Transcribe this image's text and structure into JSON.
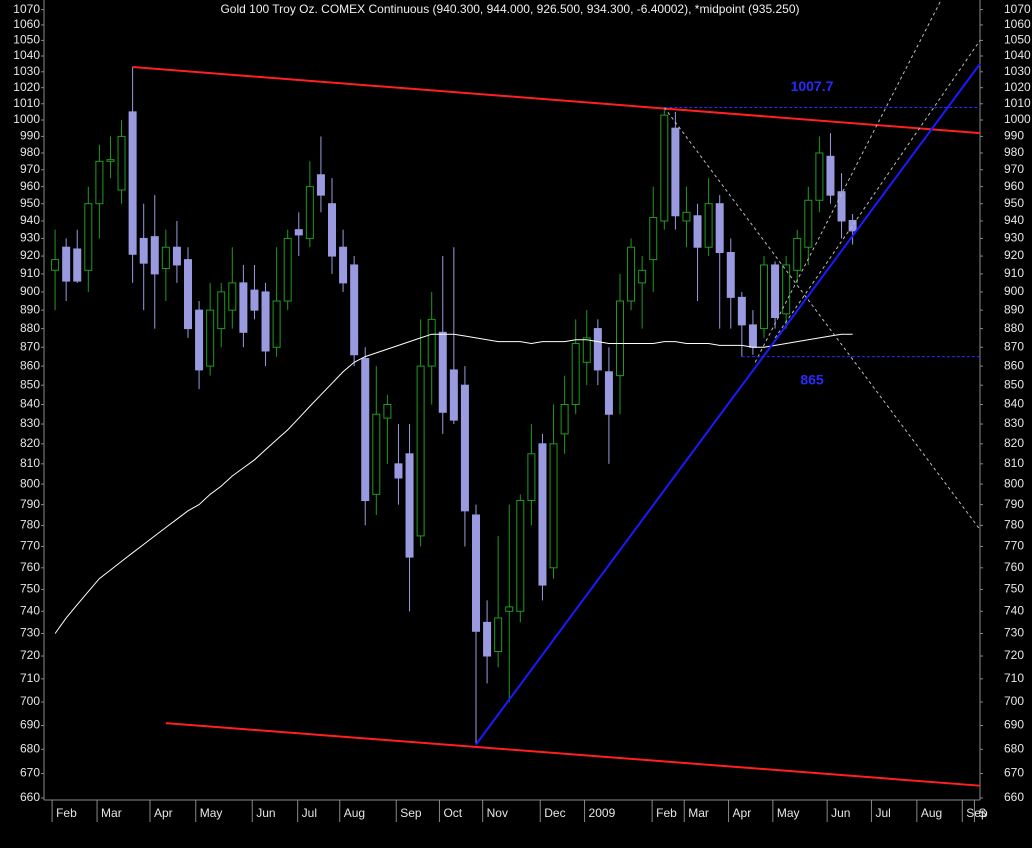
{
  "chart_data": {
    "type": "candlestick",
    "title": "Gold 100 Troy Oz. COMEX Continuous (940.300, 944.000, 926.500, 934.300, -6.40002), *midpoint (935.250)",
    "log": true,
    "ylim": [
      660,
      1075
    ],
    "yticks": [
      660,
      670,
      680,
      690,
      700,
      710,
      720,
      730,
      740,
      750,
      760,
      770,
      780,
      790,
      800,
      810,
      820,
      830,
      840,
      850,
      860,
      870,
      880,
      890,
      900,
      910,
      920,
      930,
      940,
      950,
      960,
      970,
      980,
      990,
      1000,
      1010,
      1020,
      1030,
      1040,
      1050,
      1060,
      1070
    ],
    "xlim": [
      -1,
      83.5
    ],
    "xticks": [
      {
        "value": -0.27,
        "label": "Feb"
      },
      {
        "value": 3.79,
        "label": "Mar"
      },
      {
        "value": 8.57,
        "label": "Apr"
      },
      {
        "value": 12.7,
        "label": "May"
      },
      {
        "value": 17.8,
        "label": "Jun"
      },
      {
        "value": 21.9,
        "label": "Jul"
      },
      {
        "value": 25.7,
        "label": "Aug"
      },
      {
        "value": 30.8,
        "label": "Sep"
      },
      {
        "value": 34.7,
        "label": "Oct"
      },
      {
        "value": 38.6,
        "label": "Nov"
      },
      {
        "value": 43.8,
        "label": "Dec"
      },
      {
        "value": 47.8,
        "label": "2009"
      },
      {
        "value": 53.9,
        "label": "Feb"
      },
      {
        "value": 56.8,
        "label": "Mar"
      },
      {
        "value": 60.8,
        "label": "Apr"
      },
      {
        "value": 64.8,
        "label": "May"
      },
      {
        "value": 69.7,
        "label": "Jun"
      },
      {
        "value": 73.7,
        "label": "Jul"
      },
      {
        "value": 77.8,
        "label": "Aug"
      },
      {
        "value": 81.9,
        "label": "Sep"
      },
      {
        "value": 83.0,
        "label": "S"
      }
    ],
    "up_color": "#1f9a1f",
    "down_color": "#9a9ae0",
    "open": [
      912,
      925,
      924,
      912,
      950,
      975,
      958,
      1005,
      930,
      931,
      913,
      925,
      918,
      890,
      860,
      880,
      890,
      905,
      901,
      900,
      870,
      895,
      935,
      930,
      967,
      950,
      925,
      915,
      864,
      795,
      833,
      810,
      815,
      775,
      860,
      878,
      858,
      850,
      785,
      735,
      722,
      740,
      740,
      792,
      820,
      760,
      825,
      840,
      862,
      880,
      857,
      855,
      895,
      905,
      918,
      940,
      995,
      940,
      943,
      925,
      950,
      922,
      897,
      882,
      880,
      915,
      888,
      912,
      925,
      952,
      978,
      957,
      940.3
    ],
    "high": [
      935,
      930,
      935,
      960,
      985,
      990,
      1000,
      1033,
      950,
      955,
      935,
      940,
      925,
      895,
      905,
      905,
      925,
      915,
      915,
      905,
      925,
      935,
      945,
      975,
      990,
      965,
      935,
      920,
      870,
      860,
      845,
      830,
      830,
      885,
      900,
      920,
      925,
      860,
      790,
      745,
      775,
      790,
      795,
      830,
      825,
      840,
      855,
      885,
      890,
      885,
      870,
      910,
      930,
      920,
      960,
      1008,
      1005,
      960,
      950,
      965,
      955,
      930,
      900,
      890,
      920,
      917,
      920,
      935,
      960,
      990,
      992,
      968,
      944
    ],
    "low": [
      890,
      895,
      905,
      900,
      930,
      965,
      950,
      905,
      890,
      880,
      895,
      905,
      875,
      848,
      855,
      870,
      880,
      870,
      885,
      860,
      865,
      890,
      920,
      925,
      945,
      910,
      900,
      860,
      780,
      785,
      810,
      790,
      740,
      770,
      840,
      825,
      830,
      770,
      682,
      708,
      715,
      700,
      735,
      780,
      745,
      755,
      815,
      835,
      850,
      850,
      810,
      835,
      890,
      880,
      900,
      935,
      935,
      925,
      895,
      920,
      880,
      880,
      865,
      866,
      875,
      880,
      880,
      905,
      915,
      945,
      950,
      930,
      926.5
    ],
    "close": [
      918,
      906,
      906,
      950,
      975,
      976,
      990,
      921,
      916,
      910,
      925,
      915,
      880,
      858,
      890,
      900,
      905,
      878,
      890,
      868,
      895,
      930,
      932,
      960,
      955,
      920,
      905,
      866,
      792,
      835,
      840,
      803,
      765,
      860,
      885,
      836,
      832,
      787,
      731,
      720,
      737,
      742,
      792,
      815,
      752,
      820,
      840,
      872,
      875,
      858,
      835,
      895,
      925,
      912,
      942,
      1003,
      943,
      945,
      925,
      950,
      922,
      897,
      882,
      870,
      915,
      886,
      915,
      930,
      952,
      980,
      955,
      940,
      934.3
    ],
    "moving_average": {
      "color": "#ffffff",
      "values": [
        730,
        737,
        743,
        749,
        755,
        759,
        763,
        767,
        771,
        775,
        779,
        783,
        787,
        790,
        795,
        799,
        804,
        808,
        812,
        817,
        822,
        827,
        833,
        839,
        845,
        851,
        857,
        862,
        865,
        867,
        869,
        871,
        873,
        875,
        877,
        877,
        877,
        876,
        875,
        874,
        873,
        873,
        873,
        872,
        873,
        873,
        873,
        874,
        874,
        873,
        872,
        872,
        872,
        872,
        872,
        873,
        873,
        872,
        872,
        872,
        871,
        871,
        871,
        870,
        870,
        871,
        872,
        873,
        874,
        875,
        876,
        877,
        877
      ]
    },
    "trendlines": [
      {
        "x": [
          7,
          83.5
        ],
        "y": [
          1033,
          992
        ],
        "color": "#ff2020",
        "dash": false
      },
      {
        "x": [
          10,
          83.5
        ],
        "y": [
          691,
          665
        ],
        "color": "#ff2020",
        "dash": false
      },
      {
        "x": [
          38,
          83.5
        ],
        "y": [
          682,
          1035
        ],
        "color": "#1a1aff",
        "dash": false
      },
      {
        "x": [
          55,
          83.5
        ],
        "y": [
          1007.7,
          778
        ],
        "color": "#bbbbbb",
        "dash": true
      },
      {
        "x": [
          63.2,
          79.9
        ],
        "y": [
          862,
          1075
        ],
        "color": "#bbbbbb",
        "dash": true
      },
      {
        "x": [
          65,
          83.5
        ],
        "y": [
          875,
          1050
        ],
        "color": "#bbbbbb",
        "dash": true
      }
    ],
    "levels": [
      {
        "value": 1007.7,
        "start": 55,
        "color": "#2a2aff"
      },
      {
        "value": 865,
        "start": 62,
        "color": "#2a2aff"
      }
    ]
  }
}
